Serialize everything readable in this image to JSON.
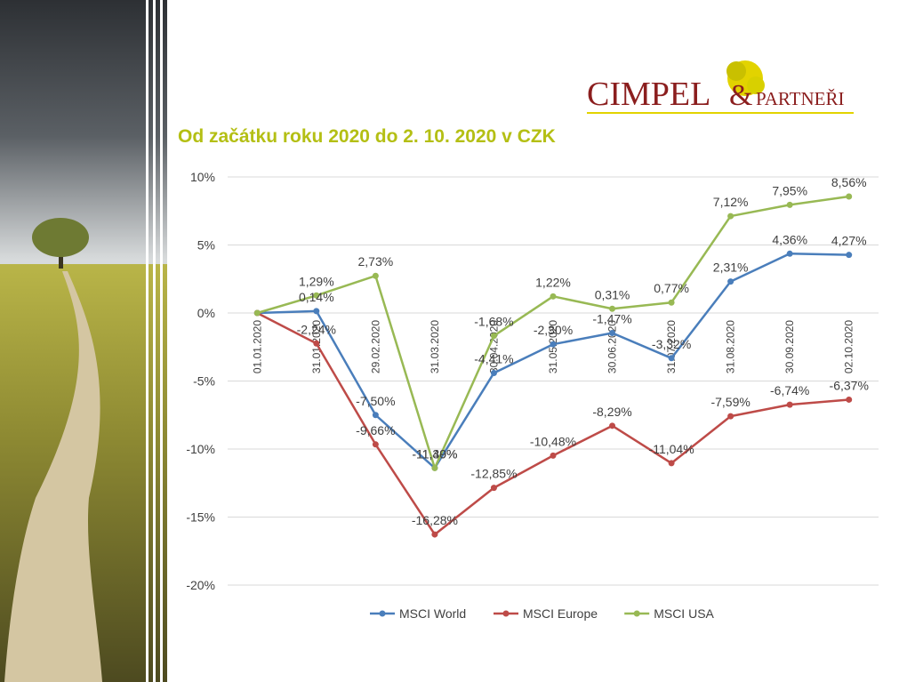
{
  "title": "Od začátku roku 2020 do 2. 10. 2020 v CZK",
  "logo": {
    "brand": "CIMPEL",
    "ampersand": "&",
    "suffix": "PARTNEŘI"
  },
  "colors": {
    "accent": "#b4bf14",
    "logo_red": "#8b1e1e",
    "logo_yellow": "#e2d300"
  },
  "chart_data": {
    "type": "line",
    "categories": [
      "01.01.2020",
      "31.01.2020",
      "29.02.2020",
      "31.03.2020",
      "30.04.2020",
      "31.05.2020",
      "30.06.2020",
      "31.07.2020",
      "31.08.2020",
      "30.09.2020",
      "02.10.2020"
    ],
    "series": [
      {
        "name": "MSCI World",
        "color": "#4a7ebb",
        "values": [
          0,
          0.14,
          -7.5,
          -11.39,
          -4.41,
          -2.3,
          -1.47,
          -3.32,
          2.31,
          4.36,
          4.27
        ],
        "labels": [
          "",
          "0,14%",
          "-7,50%",
          "-11,39%",
          "-4,41%",
          "-2,30%",
          "-1,47%",
          "-3,32%",
          "2,31%",
          "4,36%",
          "4,27%"
        ]
      },
      {
        "name": "MSCI Europe",
        "color": "#be4b48",
        "values": [
          0,
          -2.24,
          -9.66,
          -16.28,
          -12.85,
          -10.48,
          -8.29,
          -11.04,
          -7.59,
          -6.74,
          -6.37
        ],
        "labels": [
          "",
          "-2,24%",
          "-9,66%",
          "-16,28%",
          "-12,85%",
          "-10,48%",
          "-8,29%",
          "-11,04%",
          "-7,59%",
          "-6,74%",
          "-6,37%"
        ]
      },
      {
        "name": "MSCI USA",
        "color": "#98b954",
        "values": [
          0,
          1.29,
          2.73,
          -11.4,
          -1.68,
          1.22,
          0.31,
          0.77,
          7.12,
          7.95,
          8.56
        ],
        "labels": [
          "",
          "1,29%",
          "2,73%",
          "-11,40%",
          "-1,68%",
          "1,22%",
          "0,31%",
          "0,77%",
          "7,12%",
          "7,95%",
          "8,56%"
        ]
      }
    ],
    "y_ticks": [
      10,
      5,
      0,
      -5,
      -10,
      -15,
      -20
    ],
    "y_tick_labels": [
      "10%",
      "5%",
      "0%",
      "-5%",
      "-10%",
      "-15%",
      "-20%"
    ],
    "ylim": [
      -20,
      10
    ],
    "grid": true,
    "legend_position": "bottom"
  }
}
